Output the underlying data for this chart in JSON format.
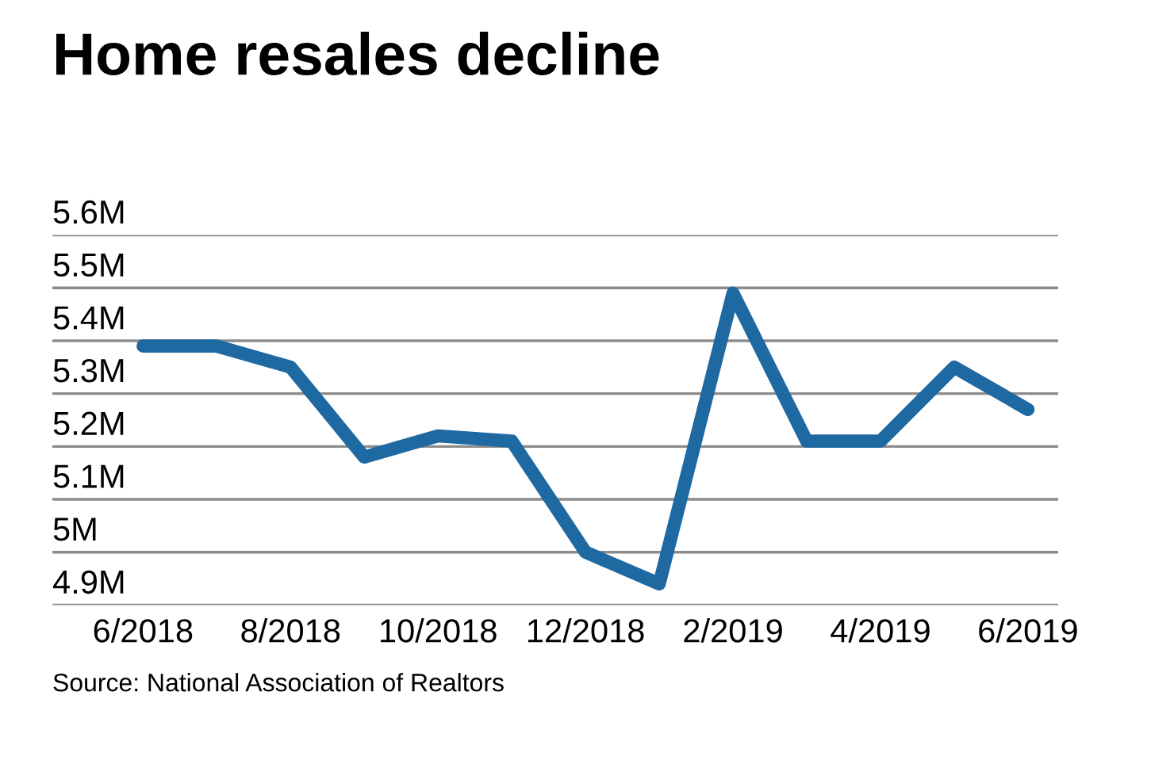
{
  "chart_data": {
    "type": "line",
    "title": "Home resales decline",
    "categories": [
      "6/2018",
      null,
      "8/2018",
      null,
      "10/2018",
      null,
      "12/2018",
      null,
      "2/2019",
      null,
      "4/2019",
      null,
      "6/2019"
    ],
    "series": [
      {
        "color": "#1f69a3",
        "values": [
          5.39,
          5.39,
          5.35,
          5.18,
          5.22,
          5.21,
          5.0,
          4.94,
          5.49,
          5.21,
          5.21,
          5.35,
          5.27
        ]
      }
    ],
    "ylim": [
      4.9,
      5.6
    ],
    "yticks": [
      {
        "value": 4.9,
        "label": "4.9M"
      },
      {
        "value": 5.0,
        "label": "5M"
      },
      {
        "value": 5.1,
        "label": "5.1M"
      },
      {
        "value": 5.2,
        "label": "5.2M"
      },
      {
        "value": 5.3,
        "label": "5.3M"
      },
      {
        "value": 5.4,
        "label": "5.4M"
      },
      {
        "value": 5.5,
        "label": "5.5M"
      },
      {
        "value": 5.6,
        "label": "5.6M"
      }
    ],
    "grid": "y",
    "marker": "none",
    "line_style": "solid",
    "legend": false,
    "annotations": [
      "Source: National Association of Realtors"
    ]
  }
}
